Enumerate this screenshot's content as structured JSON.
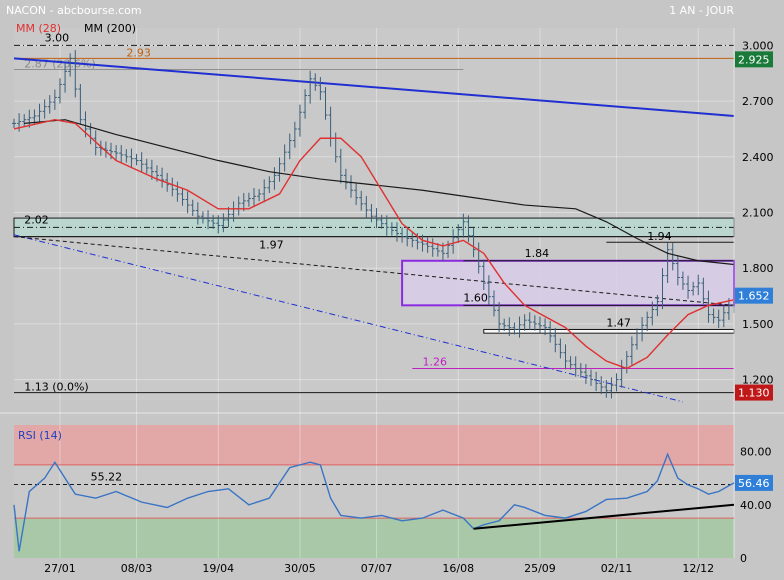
{
  "header": {
    "source": "NACON - abcbourse.com",
    "timeframe": "1 AN - JOUR",
    "legend": [
      {
        "label": "MM (28)",
        "color": "#e03030"
      },
      {
        "label": "MM (200)",
        "color": "#000000"
      }
    ]
  },
  "colors": {
    "background": "#c6c6c6",
    "candle": "#3a5f7a",
    "mm28": "#e03030",
    "mm200": "#1a1a1a",
    "trendline": "#2030d0",
    "rsi_line": "#3a74c4",
    "rsi_overbought": "#e2a8a8",
    "rsi_oversold": "#a8c8a8",
    "box_purple": "#8a2be2",
    "last_price_tag": "#2f7fd8",
    "high_tag": "#1a7a3a",
    "low_tag": "#c01818"
  },
  "chart_data": [
    {
      "type": "line",
      "subtype": "candlestick",
      "title": "NACON",
      "x_tick_labels": [
        "27/01",
        "08/03",
        "19/04",
        "30/05",
        "07/07",
        "16/08",
        "25/09",
        "02/11",
        "12/12"
      ],
      "y_axis": {
        "ticks": [
          "3.000",
          "2.700",
          "2.400",
          "2.100",
          "1.800",
          "1.500",
          "1.200"
        ],
        "ylim": [
          1.09,
          3.04
        ],
        "scale": "linear"
      },
      "series": [
        {
          "name": "MM (28)"
        },
        {
          "name": "MM (200)"
        }
      ],
      "price_path": [
        [
          0,
          2.58
        ],
        [
          4,
          2.62
        ],
        [
          8,
          2.72
        ],
        [
          11,
          2.93
        ],
        [
          13,
          2.6
        ],
        [
          16,
          2.45
        ],
        [
          20,
          2.42
        ],
        [
          24,
          2.38
        ],
        [
          28,
          2.3
        ],
        [
          32,
          2.2
        ],
        [
          36,
          2.08
        ],
        [
          40,
          2.03
        ],
        [
          44,
          2.15
        ],
        [
          48,
          2.2
        ],
        [
          51,
          2.3
        ],
        [
          55,
          2.55
        ],
        [
          58,
          2.82
        ],
        [
          60,
          2.75
        ],
        [
          62,
          2.5
        ],
        [
          64,
          2.3
        ],
        [
          67,
          2.18
        ],
        [
          70,
          2.08
        ],
        [
          73,
          2.02
        ],
        [
          76,
          1.97
        ],
        [
          80,
          1.93
        ],
        [
          84,
          1.88
        ],
        [
          88,
          2.05
        ],
        [
          90,
          1.9
        ],
        [
          92,
          1.72
        ],
        [
          95,
          1.5
        ],
        [
          98,
          1.47
        ],
        [
          100,
          1.52
        ],
        [
          104,
          1.48
        ],
        [
          108,
          1.3
        ],
        [
          112,
          1.22
        ],
        [
          116,
          1.14
        ],
        [
          118,
          1.2
        ],
        [
          122,
          1.45
        ],
        [
          126,
          1.62
        ],
        [
          128,
          1.9
        ],
        [
          130,
          1.75
        ],
        [
          132,
          1.68
        ],
        [
          134,
          1.72
        ],
        [
          136,
          1.55
        ],
        [
          138,
          1.52
        ],
        [
          140,
          1.6
        ],
        [
          141,
          1.652
        ]
      ],
      "mm28_path": [
        [
          0,
          2.55
        ],
        [
          8,
          2.6
        ],
        [
          12,
          2.58
        ],
        [
          20,
          2.38
        ],
        [
          28,
          2.28
        ],
        [
          34,
          2.22
        ],
        [
          40,
          2.12
        ],
        [
          46,
          2.12
        ],
        [
          52,
          2.2
        ],
        [
          56,
          2.38
        ],
        [
          60,
          2.5
        ],
        [
          64,
          2.5
        ],
        [
          68,
          2.4
        ],
        [
          72,
          2.22
        ],
        [
          76,
          2.04
        ],
        [
          80,
          1.95
        ],
        [
          84,
          1.92
        ],
        [
          88,
          1.95
        ],
        [
          92,
          1.88
        ],
        [
          96,
          1.72
        ],
        [
          100,
          1.6
        ],
        [
          104,
          1.54
        ],
        [
          108,
          1.48
        ],
        [
          112,
          1.38
        ],
        [
          116,
          1.3
        ],
        [
          120,
          1.26
        ],
        [
          124,
          1.32
        ],
        [
          128,
          1.44
        ],
        [
          132,
          1.55
        ],
        [
          136,
          1.6
        ],
        [
          141,
          1.63
        ]
      ],
      "mm200_path": [
        [
          2,
          2.58
        ],
        [
          10,
          2.6
        ],
        [
          20,
          2.52
        ],
        [
          30,
          2.45
        ],
        [
          40,
          2.38
        ],
        [
          50,
          2.32
        ],
        [
          60,
          2.28
        ],
        [
          70,
          2.25
        ],
        [
          80,
          2.22
        ],
        [
          90,
          2.18
        ],
        [
          100,
          2.14
        ],
        [
          110,
          2.12
        ],
        [
          116,
          2.05
        ],
        [
          122,
          1.96
        ],
        [
          128,
          1.88
        ],
        [
          134,
          1.84
        ],
        [
          141,
          1.82
        ]
      ],
      "horizontal_levels": [
        {
          "label": "3.00",
          "value": 3.0,
          "style": "dash-dot",
          "color": "#1a1a1a"
        },
        {
          "label": "2.93",
          "value": 2.93,
          "style": "solid",
          "color": "#c06010"
        },
        {
          "label": "2.87",
          "value": 2.87,
          "style": "solid",
          "color": "#909090",
          "extra": "(23.6%)"
        },
        {
          "label": "2.02",
          "value": 2.02,
          "style": "dash-dot",
          "color": "#1a1a1a"
        },
        {
          "label": "1.97",
          "value": 1.97,
          "style": "solid",
          "color": "#1a1a1a"
        },
        {
          "label": "1.94",
          "value": 1.94,
          "style": "solid",
          "color": "#1a1a1a"
        },
        {
          "label": "1.84",
          "value": 1.84,
          "style": "solid",
          "color": "#1a1a1a"
        },
        {
          "label": "1.60",
          "value": 1.6,
          "style": "solid",
          "color": "#1a1a1a"
        },
        {
          "label": "1.47",
          "value": 1.47,
          "style": "solid",
          "color": "#1a1a1a"
        },
        {
          "label": "1.26",
          "value": 1.26,
          "style": "solid",
          "color": "#c020c0"
        },
        {
          "label": "1.13",
          "value": 1.13,
          "style": "solid",
          "color": "#1a1a1a",
          "extra": "(0.0%)"
        }
      ],
      "trendlines": [
        {
          "from": [
            0,
            2.93
          ],
          "to": [
            141,
            2.62
          ],
          "color": "#2030d0",
          "style": "solid"
        },
        {
          "from": [
            0,
            1.98
          ],
          "to": [
            131,
            1.08
          ],
          "color": "#2030d0",
          "style": "dash-dot"
        },
        {
          "from": [
            0,
            1.97
          ],
          "to": [
            141,
            1.6
          ],
          "color": "#1a1a1a",
          "style": "dashed"
        }
      ],
      "zones": [
        {
          "from_x": 0,
          "to_x": 141,
          "y_low": 1.97,
          "y_high": 2.07,
          "color": "#b8d8d0"
        },
        {
          "from_x": 76,
          "to_x": 141,
          "y_low": 1.6,
          "y_high": 1.84,
          "color": "#d8cce8",
          "border": "#8a2be2"
        },
        {
          "from_x": 92,
          "to_x": 141,
          "y_low": 1.45,
          "y_high": 1.47,
          "color": "#ffffff"
        }
      ],
      "price_tags": [
        {
          "label": "2.925",
          "value": 2.925,
          "color": "#1a7a3a"
        },
        {
          "label": "1.652",
          "value": 1.652,
          "color": "#2f7fd8"
        },
        {
          "label": "1.130",
          "value": 1.13,
          "color": "#c01818"
        }
      ]
    },
    {
      "type": "line",
      "title": "RSI (14)",
      "y_axis": {
        "ticks": [
          "80.00",
          "40.00",
          "0"
        ],
        "ylim": [
          0,
          100
        ]
      },
      "levels": [
        {
          "label": "55.22",
          "value": 55.22
        },
        {
          "value": 70
        },
        {
          "value": 30
        }
      ],
      "rsi_path": [
        [
          0,
          40
        ],
        [
          1,
          5
        ],
        [
          3,
          50
        ],
        [
          6,
          60
        ],
        [
          8,
          72
        ],
        [
          10,
          60
        ],
        [
          12,
          48
        ],
        [
          16,
          45
        ],
        [
          20,
          50
        ],
        [
          25,
          42
        ],
        [
          30,
          38
        ],
        [
          34,
          45
        ],
        [
          38,
          50
        ],
        [
          42,
          52
        ],
        [
          46,
          40
        ],
        [
          50,
          45
        ],
        [
          54,
          68
        ],
        [
          58,
          72
        ],
        [
          60,
          70
        ],
        [
          62,
          45
        ],
        [
          64,
          32
        ],
        [
          68,
          30
        ],
        [
          72,
          32
        ],
        [
          76,
          28
        ],
        [
          80,
          30
        ],
        [
          84,
          36
        ],
        [
          88,
          30
        ],
        [
          90,
          22
        ],
        [
          92,
          25
        ],
        [
          95,
          28
        ],
        [
          98,
          40
        ],
        [
          100,
          38
        ],
        [
          104,
          32
        ],
        [
          108,
          30
        ],
        [
          112,
          35
        ],
        [
          116,
          44
        ],
        [
          120,
          45
        ],
        [
          124,
          50
        ],
        [
          126,
          58
        ],
        [
          128,
          78
        ],
        [
          130,
          60
        ],
        [
          132,
          55
        ],
        [
          134,
          52
        ],
        [
          136,
          48
        ],
        [
          138,
          50
        ],
        [
          141,
          56.46
        ]
      ],
      "trendline": {
        "from": [
          90,
          22
        ],
        "to": [
          141,
          40
        ]
      },
      "last_value_tag": {
        "label": "56.46",
        "value": 56.46
      }
    }
  ]
}
